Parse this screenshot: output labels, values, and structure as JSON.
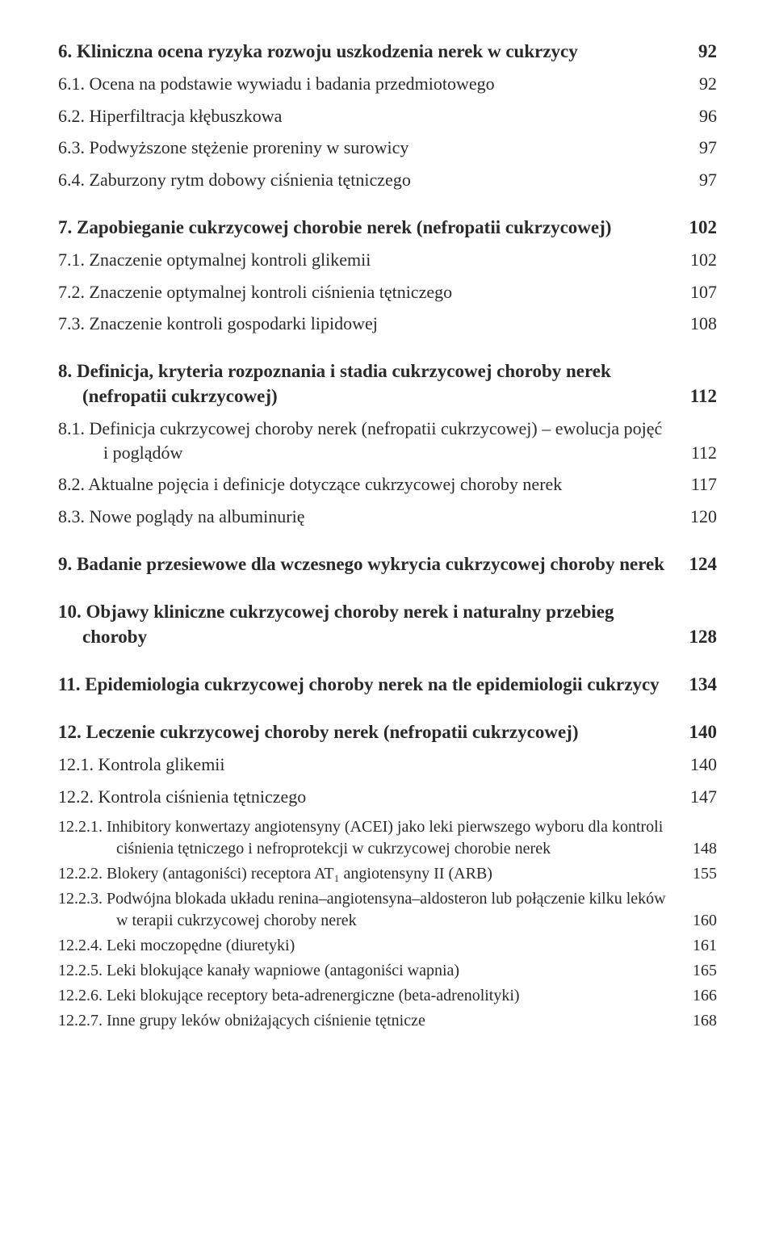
{
  "entries": [
    {
      "level": 0,
      "num": "6.",
      "title": "Kliniczna ocena ryzyka rozwoju uszkodzenia nerek w cukrzycy",
      "page": "92"
    },
    {
      "level": 1,
      "num": "6.1.",
      "title": "Ocena na podstawie wywiadu i badania przedmiotowego",
      "page": "92"
    },
    {
      "level": 1,
      "num": "6.2.",
      "title": "Hiperfiltracja kłębuszkowa",
      "page": "96"
    },
    {
      "level": 1,
      "num": "6.3.",
      "title": "Podwyższone stężenie proreniny w surowicy",
      "page": "97"
    },
    {
      "level": 1,
      "num": "6.4.",
      "title": "Zaburzony rytm dobowy ciśnienia tętniczego",
      "page": "97"
    },
    {
      "level": 0,
      "num": "7.",
      "title": "Zapobieganie cukrzycowej chorobie nerek (nefropatii cukrzycowej)",
      "page": "102"
    },
    {
      "level": 1,
      "num": "7.1.",
      "title": "Znaczenie optymalnej kontroli glikemii",
      "page": "102"
    },
    {
      "level": 1,
      "num": "7.2.",
      "title": "Znaczenie optymalnej kontroli ciśnienia tętniczego",
      "page": "107"
    },
    {
      "level": 1,
      "num": "7.3.",
      "title": "Znaczenie kontroli gospodarki lipidowej",
      "page": "108"
    },
    {
      "level": 0,
      "num": "8.",
      "title": "Definicja, kryteria rozpoznania i stadia cukrzycowej choroby nerek (nefropatii cukrzycowej)",
      "page": "112",
      "hang": true
    },
    {
      "level": 1,
      "num": "8.1.",
      "title": "Definicja cukrzycowej choroby nerek (nefropatii cukrzycowej) – ewolucja pojęć i poglądów",
      "page": "112",
      "hang": true
    },
    {
      "level": 1,
      "num": "8.2.",
      "title": "Aktualne pojęcia i definicje dotyczące cukrzycowej choroby nerek",
      "page": "117"
    },
    {
      "level": 1,
      "num": "8.3.",
      "title": "Nowe poglądy na albuminurię",
      "page": "120"
    },
    {
      "level": 0,
      "num": "9.",
      "title": "Badanie przesiewowe dla wczesnego wykrycia cukrzycowej choroby nerek",
      "page": "124",
      "hang": true
    },
    {
      "level": 0,
      "num": "10.",
      "title": "Objawy kliniczne cukrzycowej choroby nerek i naturalny przebieg choroby",
      "page": "128",
      "hang": true
    },
    {
      "level": 0,
      "num": "11.",
      "title": "Epidemiologia cukrzycowej choroby nerek na tle epidemiologii cukrzycy",
      "page": "134",
      "hang": true
    },
    {
      "level": 0,
      "num": "12.",
      "title": "Leczenie cukrzycowej choroby nerek (nefropatii cukrzycowej)",
      "page": "140"
    },
    {
      "level": 1,
      "num": "12.1.",
      "title": "Kontrola glikemii",
      "page": "140"
    },
    {
      "level": 1,
      "num": "12.2.",
      "title": "Kontrola ciśnienia tętniczego",
      "page": "147"
    },
    {
      "level": 2,
      "num": "12.2.1.",
      "title": "Inhibitory konwertazy angiotensyny (ACEI) jako leki pierwszego wyboru dla kontroli ciśnienia tętniczego i nefroprotekcji w cukrzycowej chorobie nerek",
      "page": "148"
    },
    {
      "level": 2,
      "num": "12.2.2.",
      "title": "Blokery (antagoniści) receptora AT₁ angiotensyny II (ARB)",
      "page": "155"
    },
    {
      "level": 2,
      "num": "12.2.3.",
      "title": "Podwójna blokada układu renina–angiotensyna–aldosteron lub połączenie kilku leków w terapii cukrzycowej choroby nerek",
      "page": "160"
    },
    {
      "level": 2,
      "num": "12.2.4.",
      "title": "Leki moczopędne (diuretyki)",
      "page": "161"
    },
    {
      "level": 2,
      "num": "12.2.5.",
      "title": "Leki blokujące kanały wapniowe (antagoniści wapnia)",
      "page": "165"
    },
    {
      "level": 2,
      "num": "12.2.6.",
      "title": "Leki blokujące receptory beta-adrenergiczne (beta-adrenolityki)",
      "page": "166"
    },
    {
      "level": 2,
      "num": "12.2.7.",
      "title": "Inne grupy leków obniżających ciśnienie tętnicze",
      "page": "168"
    }
  ]
}
